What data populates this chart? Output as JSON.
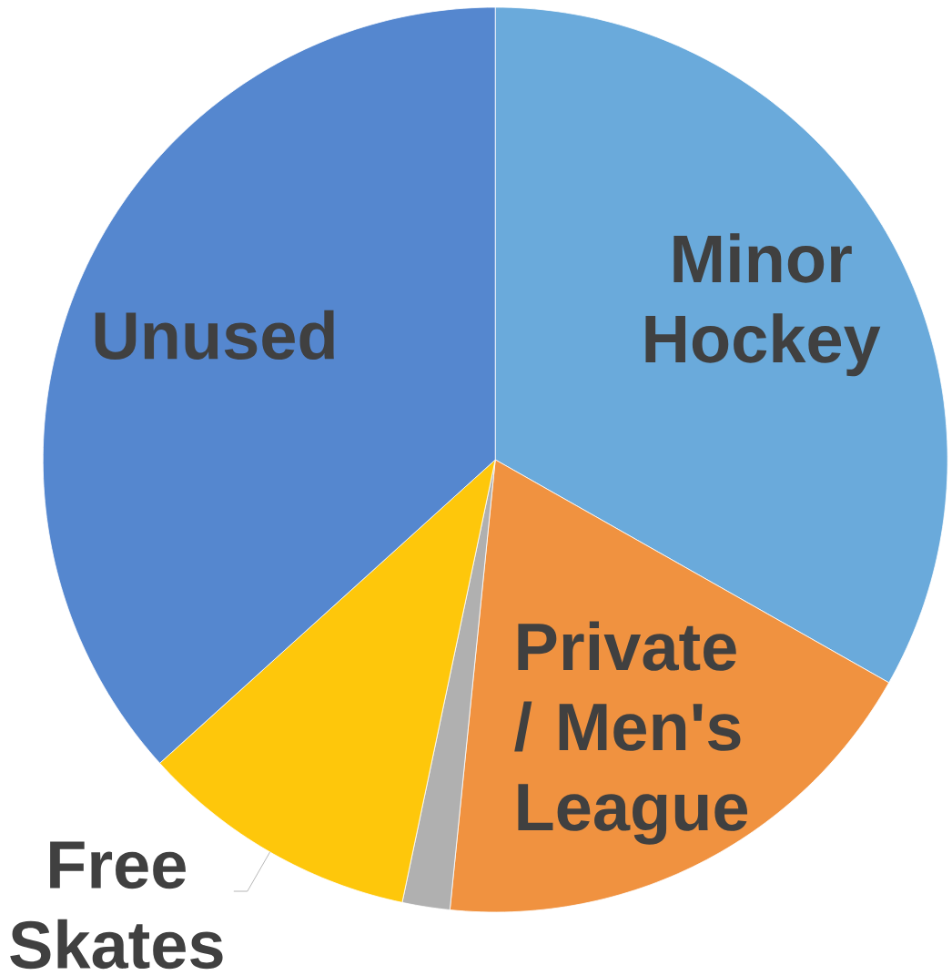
{
  "chart_data": {
    "type": "pie",
    "categories": [
      "Minor Hockey",
      "Private / Men's League",
      null,
      "Free Skates",
      "Unused"
    ],
    "values": [
      33.2,
      18.4,
      1.7,
      10.0,
      36.7
    ],
    "colors": [
      "#6aaadb",
      "#f09240",
      "#b0b0b0",
      "#fec70b",
      "#5587cf"
    ]
  }
}
